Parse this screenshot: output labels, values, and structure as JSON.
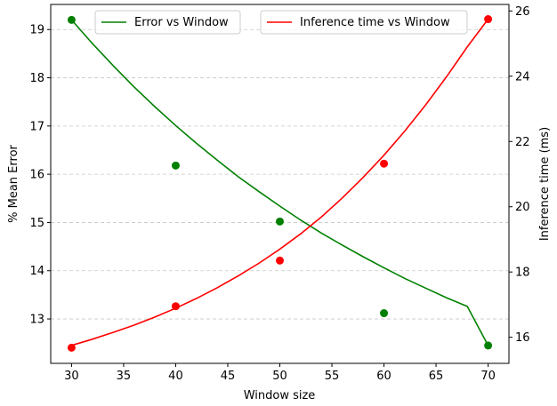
{
  "chart_data": {
    "type": "line",
    "title": "",
    "xlabel": "Window size",
    "ylabel_left": "% Mean Error",
    "ylabel_right": "Inference time (ms)",
    "xlim": [
      28,
      72
    ],
    "ylim_left": [
      12.08,
      19.52
    ],
    "ylim_right": [
      15.2,
      26.2
    ],
    "x_ticks": [
      30,
      35,
      40,
      45,
      50,
      55,
      60,
      65,
      70
    ],
    "y_ticks_left": [
      13,
      14,
      15,
      16,
      17,
      18,
      19
    ],
    "y_ticks_right": [
      16,
      18,
      20,
      22,
      24,
      26
    ],
    "grid": "horizontal-dashed",
    "legends": [
      {
        "placement": "upper-left",
        "label": "Error vs Window"
      },
      {
        "placement": "upper-right",
        "label": "Inference time vs Window"
      }
    ],
    "series": [
      {
        "name": "Error vs Window",
        "axis": "left",
        "color": "#008000",
        "points": {
          "x": [
            30,
            40,
            50,
            60,
            70
          ],
          "y": [
            19.2,
            16.18,
            15.02,
            13.12,
            12.45
          ]
        },
        "fit_curve": {
          "x": [
            30,
            32,
            34,
            36,
            38,
            40,
            42,
            44,
            46,
            48,
            50,
            52,
            54,
            56,
            58,
            60,
            62,
            64,
            66,
            68,
            70
          ],
          "y": [
            19.2,
            18.71,
            18.25,
            17.81,
            17.4,
            17.01,
            16.64,
            16.29,
            15.95,
            15.64,
            15.34,
            15.05,
            14.78,
            14.53,
            14.29,
            14.06,
            13.84,
            13.64,
            13.44,
            13.26,
            12.45
          ]
        }
      },
      {
        "name": "Inference time vs Window",
        "axis": "right",
        "color": "#ff0000",
        "points": {
          "x": [
            30,
            40,
            50,
            60,
            70
          ],
          "y": [
            15.68,
            16.95,
            18.35,
            21.32,
            25.75
          ]
        },
        "fit_curve": {
          "x": [
            30,
            32,
            34,
            36,
            38,
            40,
            42,
            44,
            46,
            48,
            50,
            52,
            54,
            56,
            58,
            60,
            62,
            64,
            66,
            68,
            70
          ],
          "y": [
            15.75,
            15.94,
            16.15,
            16.37,
            16.62,
            16.89,
            17.19,
            17.52,
            17.88,
            18.27,
            18.7,
            19.17,
            19.69,
            20.27,
            20.9,
            21.58,
            22.32,
            23.12,
            23.98,
            24.9,
            25.75
          ]
        }
      }
    ]
  }
}
